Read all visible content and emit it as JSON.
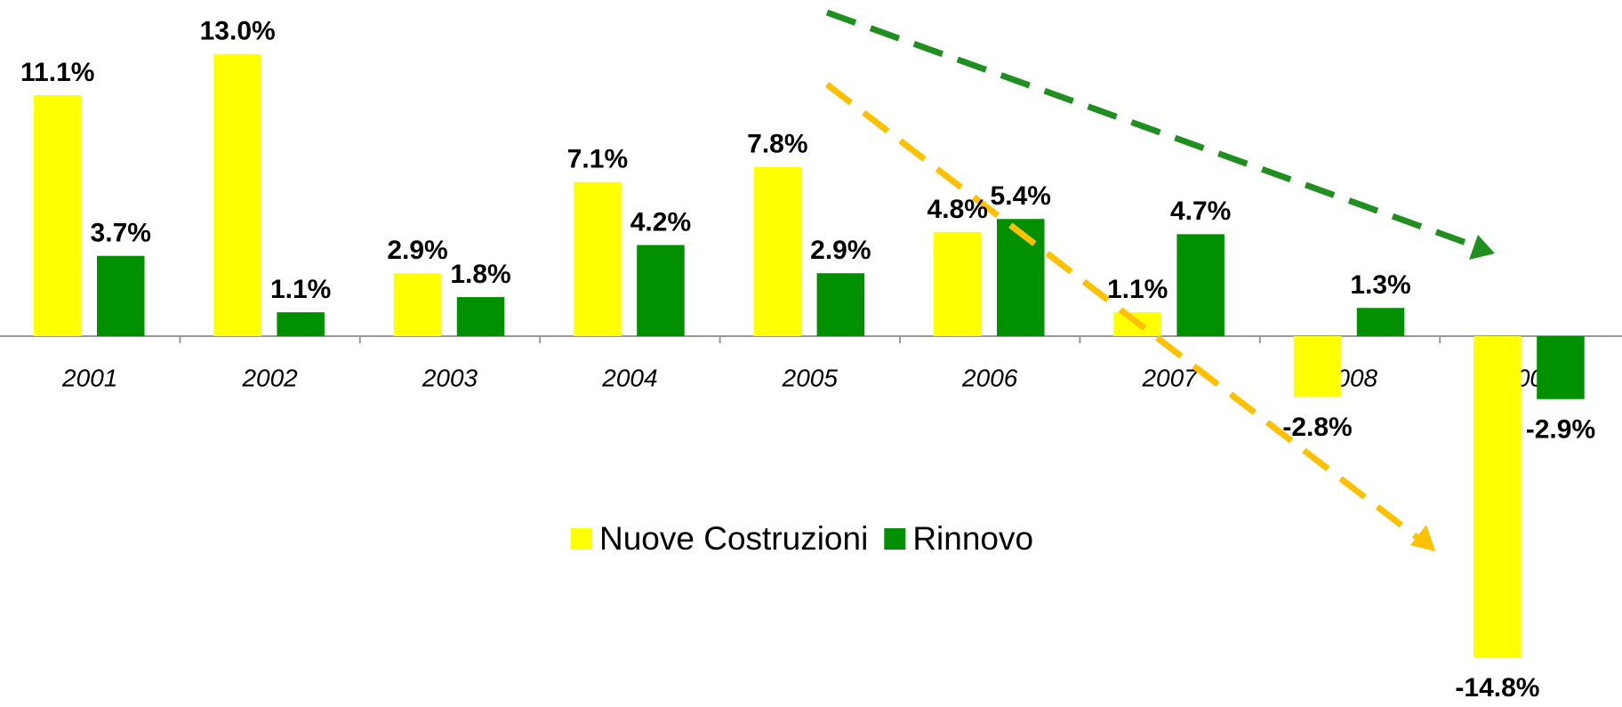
{
  "chart_data": {
    "type": "bar",
    "categories": [
      "2001",
      "2002",
      "2003",
      "2004",
      "2005",
      "2006",
      "2007",
      "2008",
      "2009"
    ],
    "series": [
      {
        "name": "Nuove Costruzioni",
        "color": "#ffff00",
        "values": [
          11.1,
          13.0,
          2.9,
          7.1,
          7.8,
          4.8,
          1.1,
          -2.8,
          -14.8
        ],
        "value_labels": [
          "11.1%",
          "13.0%",
          "2.9%",
          "7.1%",
          "7.8%",
          "4.8%",
          "1.1%",
          "-2.8%",
          "-14.8%"
        ]
      },
      {
        "name": "Rinnovo",
        "color": "#009000",
        "values": [
          3.7,
          1.1,
          1.8,
          4.2,
          2.9,
          5.4,
          4.7,
          1.3,
          -2.9
        ],
        "value_labels": [
          "3.7%",
          "1.1%",
          "1.8%",
          "4.2%",
          "2.9%",
          "5.4%",
          "4.7%",
          "1.3%",
          "-2.9%"
        ]
      }
    ],
    "legend": "bottom-center"
  }
}
